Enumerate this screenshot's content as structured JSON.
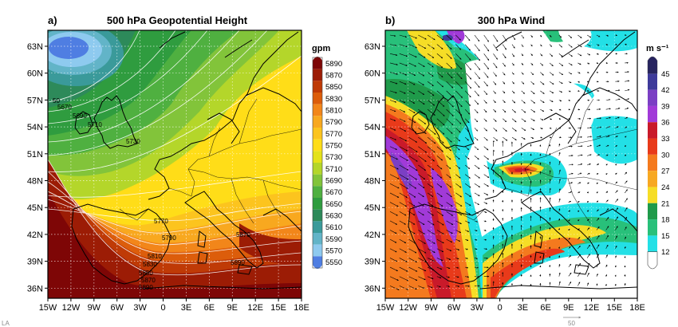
{
  "panel_a": {
    "letter": "a)",
    "title": "500 hPa Geopotential Height",
    "unit": "gpm",
    "colorbar": [
      {
        "label": "5890",
        "color": "#7e0606"
      },
      {
        "label": "5870",
        "color": "#9c1c05"
      },
      {
        "label": "5850",
        "color": "#bf3a06"
      },
      {
        "label": "5830",
        "color": "#dc5d0b"
      },
      {
        "label": "5810",
        "color": "#f2861a"
      },
      {
        "label": "5790",
        "color": "#f8a81f"
      },
      {
        "label": "5770",
        "color": "#fcc41e"
      },
      {
        "label": "5750",
        "color": "#ffdd18"
      },
      {
        "label": "5730",
        "color": "#e4e21a"
      },
      {
        "label": "5710",
        "color": "#b4d62a"
      },
      {
        "label": "5690",
        "color": "#82c43a"
      },
      {
        "label": "5670",
        "color": "#4fb040"
      },
      {
        "label": "5650",
        "color": "#2f9c3f"
      },
      {
        "label": "5630",
        "color": "#2d8a5a"
      },
      {
        "label": "5610",
        "color": "#3a9a9a"
      },
      {
        "label": "5590",
        "color": "#62b4c8"
      },
      {
        "label": "5570",
        "color": "#8ecaef"
      },
      {
        "label": "5550",
        "color": "#4f7ee2"
      }
    ],
    "contour_labels": [
      "5670",
      "5690",
      "5710",
      "5730",
      "5770",
      "5790",
      "5810",
      "5830",
      "5850",
      "5870",
      "5890",
      "5870",
      "5890",
      "50"
    ]
  },
  "panel_b": {
    "letter": "b)",
    "title": "300 hPa Wind",
    "unit": "m s⁻¹",
    "colorbar": [
      {
        "label": "45",
        "color": "#27245f"
      },
      {
        "label": "42",
        "color": "#3e3a9a"
      },
      {
        "label": "39",
        "color": "#7b3fc4"
      },
      {
        "label": "36",
        "color": "#a13ad8"
      },
      {
        "label": "33",
        "color": "#c91a2a"
      },
      {
        "label": "30",
        "color": "#e83a1a"
      },
      {
        "label": "27",
        "color": "#f47a1e"
      },
      {
        "label": "24",
        "color": "#f7a822"
      },
      {
        "label": "21",
        "color": "#f6dd26"
      },
      {
        "label": "18",
        "color": "#1f9a4a"
      },
      {
        "label": "15",
        "color": "#28c07a"
      },
      {
        "label": "12",
        "color": "#23e0e6"
      },
      {
        "label": "",
        "color": "#ffffff"
      }
    ],
    "reference_vector": "50"
  },
  "lat_labels": [
    "63N",
    "60N",
    "57N",
    "54N",
    "51N",
    "48N",
    "45N",
    "42N",
    "39N",
    "36N"
  ],
  "lon_labels": [
    "15W",
    "12W",
    "9W",
    "6W",
    "3W",
    "0",
    "3E",
    "6E",
    "9E",
    "12E",
    "15E",
    "18E"
  ],
  "watermark": "LA"
}
